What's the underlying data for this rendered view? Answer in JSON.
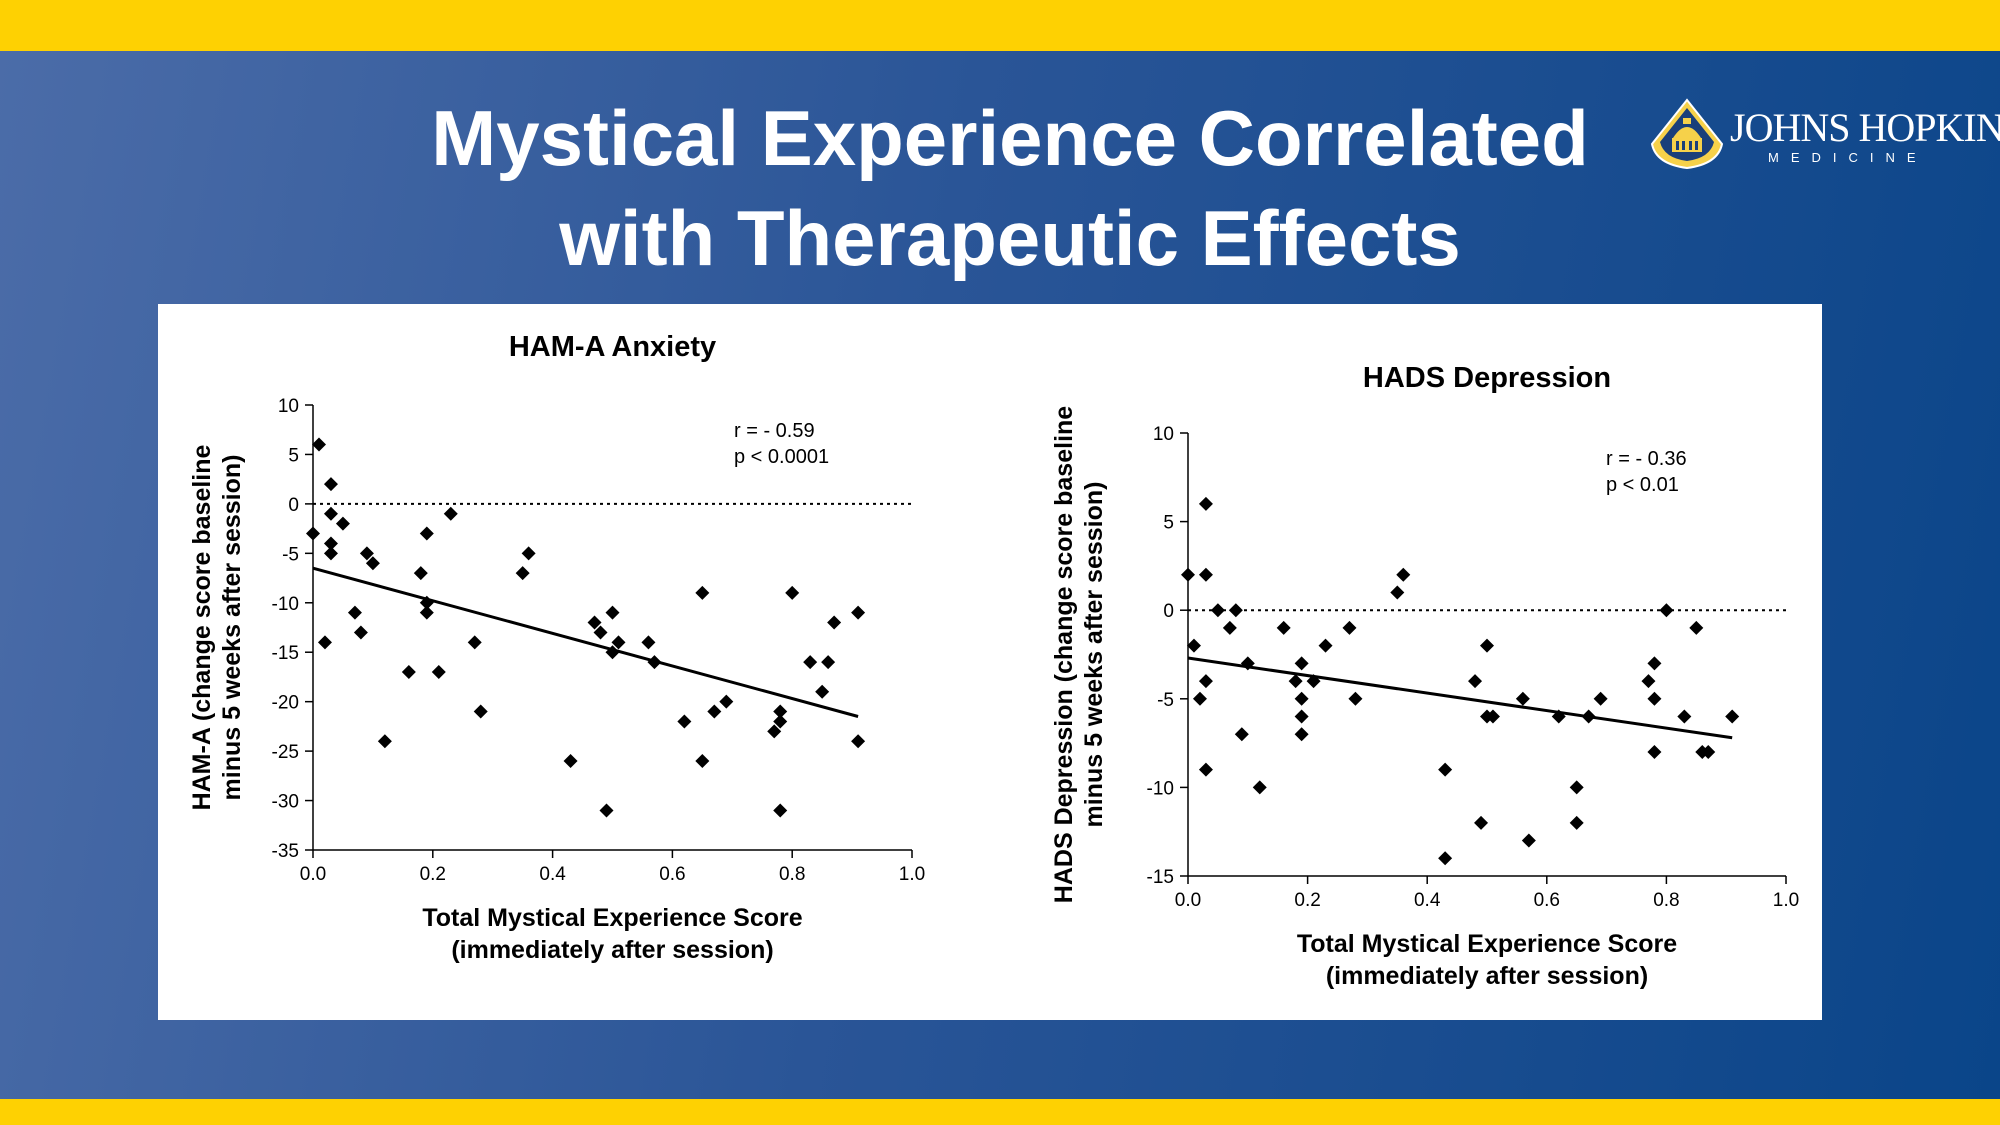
{
  "slide": {
    "title_line1": "Mystical Experience Correlated",
    "title_line2": "with Therapeutic Effects"
  },
  "logo": {
    "name": "JOHNS HOPKINS",
    "subtitle": "MEDICINE",
    "icon": "dome-shield-icon"
  },
  "colors": {
    "top_band": "#fed102",
    "background_start": "#4b6ca8",
    "background_end": "#0a4589",
    "panel": "#ffffff",
    "marker": "#000000"
  },
  "chart_data": [
    {
      "type": "scatter",
      "title": "HAM-A Anxiety",
      "xlabel_line1": "Total Mystical Experience Score",
      "xlabel_line2": "(immediately after session)",
      "ylabel_line1": "HAM-A (change score baseline",
      "ylabel_line2": "minus 5 weeks after session)",
      "xlim": [
        0,
        1.0
      ],
      "ylim": [
        -35,
        10
      ],
      "x_ticks": [
        0.0,
        0.2,
        0.4,
        0.6,
        0.8,
        1.0
      ],
      "x_tick_labels": [
        "0.0",
        "0.2",
        "0.4",
        "0.6",
        "0.8",
        "1.0"
      ],
      "y_ticks": [
        10,
        5,
        0,
        -5,
        -10,
        -15,
        -20,
        -25,
        -30,
        -35
      ],
      "y_tick_labels": [
        "10",
        "5",
        "0",
        "-5",
        "-10",
        "-15",
        "-20",
        "-25",
        "-30",
        "-35"
      ],
      "reference_line_y": 0,
      "stats_r": "r = - 0.59",
      "stats_p": "p < 0.0001",
      "fit_line": {
        "x": [
          0.0,
          0.91
        ],
        "y": [
          -6.5,
          -21.5
        ]
      },
      "points": [
        [
          0.0,
          -3
        ],
        [
          0.01,
          6
        ],
        [
          0.02,
          -14
        ],
        [
          0.03,
          2
        ],
        [
          0.03,
          -1
        ],
        [
          0.03,
          -4
        ],
        [
          0.03,
          -5
        ],
        [
          0.05,
          -2
        ],
        [
          0.07,
          -11
        ],
        [
          0.08,
          -13
        ],
        [
          0.09,
          -5
        ],
        [
          0.1,
          -6
        ],
        [
          0.12,
          -24
        ],
        [
          0.16,
          -17
        ],
        [
          0.18,
          -7
        ],
        [
          0.19,
          -3
        ],
        [
          0.19,
          -10
        ],
        [
          0.19,
          -11
        ],
        [
          0.21,
          -17
        ],
        [
          0.23,
          -1
        ],
        [
          0.27,
          -14
        ],
        [
          0.28,
          -21
        ],
        [
          0.35,
          -7
        ],
        [
          0.36,
          -5
        ],
        [
          0.43,
          -26
        ],
        [
          0.47,
          -12
        ],
        [
          0.48,
          -13
        ],
        [
          0.49,
          -31
        ],
        [
          0.5,
          -11
        ],
        [
          0.5,
          -15
        ],
        [
          0.51,
          -14
        ],
        [
          0.56,
          -14
        ],
        [
          0.57,
          -16
        ],
        [
          0.62,
          -22
        ],
        [
          0.65,
          -9
        ],
        [
          0.65,
          -26
        ],
        [
          0.67,
          -21
        ],
        [
          0.69,
          -20
        ],
        [
          0.77,
          -23
        ],
        [
          0.78,
          -21
        ],
        [
          0.78,
          -22
        ],
        [
          0.78,
          -31
        ],
        [
          0.8,
          -9
        ],
        [
          0.83,
          -16
        ],
        [
          0.85,
          -19
        ],
        [
          0.86,
          -16
        ],
        [
          0.87,
          -12
        ],
        [
          0.91,
          -11
        ],
        [
          0.91,
          -24
        ]
      ]
    },
    {
      "type": "scatter",
      "title": "HADS Depression",
      "xlabel_line1": "Total Mystical Experience Score",
      "xlabel_line2": "(immediately after session)",
      "ylabel_line1": "HADS Depression (change score baseline",
      "ylabel_line2": "minus 5 weeks after session)",
      "xlim": [
        0,
        1.0
      ],
      "ylim": [
        -15,
        10
      ],
      "x_ticks": [
        0.0,
        0.2,
        0.4,
        0.6,
        0.8,
        1.0
      ],
      "x_tick_labels": [
        "0.0",
        "0.2",
        "0.4",
        "0.6",
        "0.8",
        "1.0"
      ],
      "y_ticks": [
        10,
        5,
        0,
        -5,
        -10,
        -15
      ],
      "y_tick_labels": [
        "10",
        "5",
        "0",
        "-5",
        "-10",
        "-15"
      ],
      "reference_line_y": 0,
      "stats_r": "r = - 0.36",
      "stats_p": "p < 0.01",
      "fit_line": {
        "x": [
          0.0,
          0.91
        ],
        "y": [
          -2.7,
          -7.2
        ]
      },
      "points": [
        [
          0.0,
          2
        ],
        [
          0.01,
          -2
        ],
        [
          0.02,
          -5
        ],
        [
          0.03,
          6
        ],
        [
          0.03,
          2
        ],
        [
          0.03,
          -4
        ],
        [
          0.03,
          -9
        ],
        [
          0.05,
          0
        ],
        [
          0.07,
          -1
        ],
        [
          0.08,
          0
        ],
        [
          0.09,
          -7
        ],
        [
          0.1,
          -3
        ],
        [
          0.12,
          -10
        ],
        [
          0.16,
          -1
        ],
        [
          0.18,
          -4
        ],
        [
          0.19,
          -3
        ],
        [
          0.19,
          -5
        ],
        [
          0.19,
          -6
        ],
        [
          0.19,
          -7
        ],
        [
          0.21,
          -4
        ],
        [
          0.23,
          -2
        ],
        [
          0.27,
          -1
        ],
        [
          0.28,
          -5
        ],
        [
          0.35,
          1
        ],
        [
          0.36,
          2
        ],
        [
          0.43,
          -9
        ],
        [
          0.43,
          -14
        ],
        [
          0.48,
          -4
        ],
        [
          0.49,
          -12
        ],
        [
          0.5,
          -2
        ],
        [
          0.5,
          -6
        ],
        [
          0.51,
          -6
        ],
        [
          0.56,
          -5
        ],
        [
          0.57,
          -13
        ],
        [
          0.62,
          -6
        ],
        [
          0.65,
          -10
        ],
        [
          0.65,
          -12
        ],
        [
          0.67,
          -6
        ],
        [
          0.69,
          -5
        ],
        [
          0.77,
          -4
        ],
        [
          0.78,
          -3
        ],
        [
          0.78,
          -5
        ],
        [
          0.78,
          -8
        ],
        [
          0.8,
          0
        ],
        [
          0.83,
          -6
        ],
        [
          0.85,
          -1
        ],
        [
          0.86,
          -8
        ],
        [
          0.87,
          -8
        ],
        [
          0.91,
          -6
        ]
      ]
    }
  ]
}
